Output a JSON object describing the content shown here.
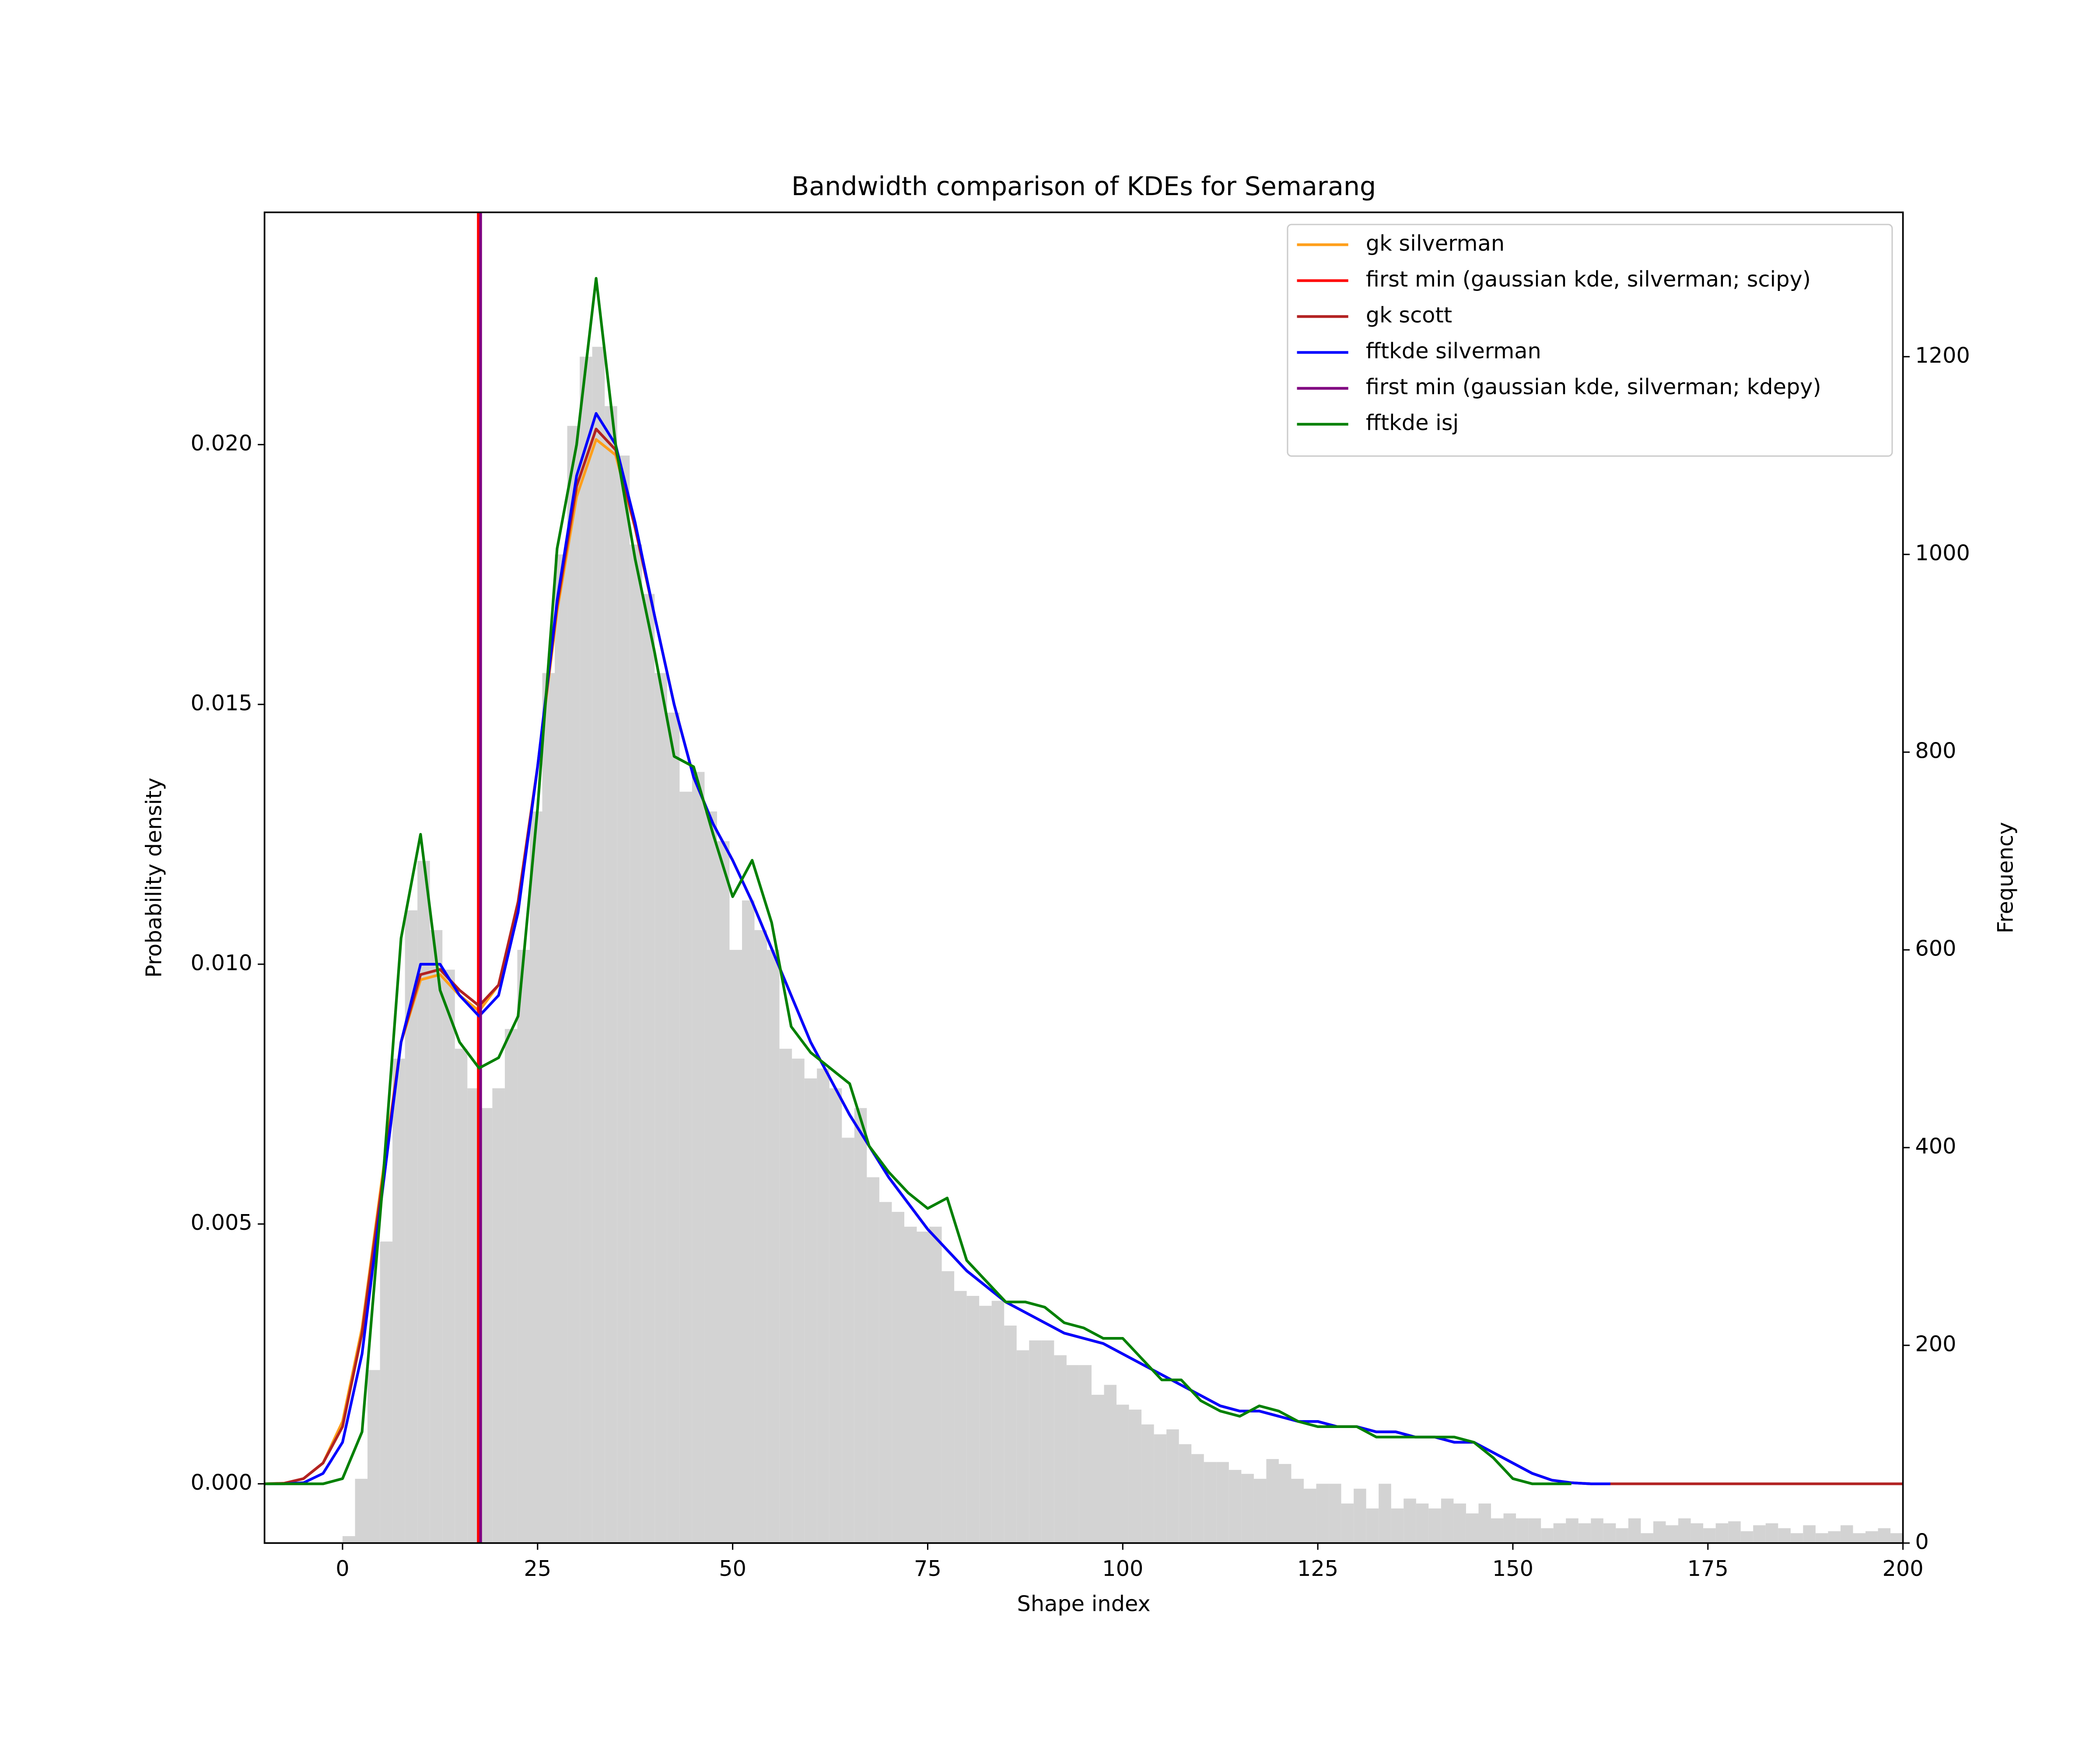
{
  "chart_data": {
    "type": "line",
    "title": "Bandwidth comparison of KDEs for Semarang",
    "xlabel": "Shape index",
    "ylabel": "Probability density",
    "y2label": "Frequency",
    "xlim": [
      -10,
      200
    ],
    "ylim": [
      -0.00114,
      0.02447
    ],
    "y2lim": [
      0,
      1346
    ],
    "xticks": [
      0,
      25,
      50,
      75,
      100,
      125,
      150,
      175,
      200
    ],
    "yticks": [
      {
        "value": 0,
        "label": "0.000"
      },
      {
        "value": 0.005,
        "label": "0.005"
      },
      {
        "value": 0.01,
        "label": "0.010"
      },
      {
        "value": 0.015,
        "label": "0.015"
      },
      {
        "value": 0.02,
        "label": "0.020"
      }
    ],
    "y2ticks": [
      0,
      200,
      400,
      600,
      800,
      1000,
      1200
    ],
    "legend": "upper right",
    "histogram": {
      "axis": "y2",
      "color": "#d3d3d3",
      "bins": [
        0,
        1.6,
        3.2,
        4.8,
        6.4,
        8,
        9.6,
        11.2,
        12.8,
        14.4,
        16,
        17.6,
        19.2,
        20.8,
        22.4,
        24,
        25.6,
        27.2,
        28.8,
        30.4,
        32,
        33.6,
        35.2,
        36.8,
        38.4,
        40,
        41.6,
        43.2,
        44.8,
        46.4,
        48,
        49.6,
        51.2,
        52.8,
        54.4,
        56,
        57.6,
        59.2,
        60.8,
        62.4,
        64,
        65.6,
        67.2,
        68.8,
        70.4,
        72,
        73.6,
        75.2,
        76.8,
        78.4,
        80,
        81.6,
        83.2,
        84.8,
        86.4,
        88,
        89.6,
        91.2,
        92.8,
        94.4,
        96,
        97.6,
        99.2,
        100.8,
        102.4,
        104,
        105.6,
        107.2,
        108.8,
        110.4,
        112,
        113.6,
        115.2,
        116.8,
        118.4,
        120,
        121.6,
        123.2,
        124.8,
        126.4,
        128,
        129.6,
        131.2,
        132.8,
        134.4,
        136,
        137.6,
        139.2,
        140.8,
        142.4,
        144,
        145.6,
        147.2,
        148.8,
        150.4,
        152,
        153.6,
        155.2,
        156.8,
        158.4,
        160,
        161.6,
        163.2,
        164.8,
        166.4,
        168,
        169.6,
        171.2,
        172.8,
        174.4,
        176,
        177.6,
        179.2,
        180.8,
        182.4,
        184,
        185.6,
        187.2,
        188.8,
        190.4,
        192,
        193.6,
        195.2,
        196.8,
        198.4,
        200
      ],
      "values": [
        7,
        65,
        175,
        305,
        490,
        640,
        690,
        620,
        580,
        500,
        460,
        440,
        460,
        520,
        600,
        740,
        880,
        1000,
        1130,
        1200,
        1210,
        1150,
        1100,
        1010,
        960,
        880,
        840,
        760,
        780,
        740,
        710,
        600,
        650,
        620,
        600,
        500,
        490,
        470,
        480,
        460,
        410,
        440,
        370,
        345,
        335,
        320,
        315,
        320,
        275,
        255,
        250,
        240,
        245,
        220,
        195,
        205,
        205,
        190,
        180,
        180,
        150,
        160,
        140,
        135,
        120,
        110,
        115,
        100,
        90,
        82,
        82,
        74,
        70,
        65,
        85,
        80,
        65,
        55,
        60,
        60,
        40,
        55,
        35,
        60,
        35,
        45,
        40,
        35,
        45,
        40,
        30,
        40,
        25,
        30,
        25,
        25,
        15,
        20,
        25,
        20,
        25,
        20,
        15,
        25,
        10,
        22,
        18,
        25,
        20,
        15,
        20,
        22,
        12,
        18,
        20,
        15,
        10,
        18,
        10,
        12,
        18,
        10,
        12,
        15,
        10
      ]
    },
    "x": [
      -10,
      -7.5,
      -5,
      -2.5,
      0,
      2.5,
      5,
      7.5,
      10,
      12.5,
      15,
      17.5,
      20,
      22.5,
      25,
      27.5,
      30,
      32.5,
      35,
      37.5,
      40,
      42.5,
      45,
      47.5,
      50,
      52.5,
      55,
      57.5,
      60,
      62.5,
      65,
      67.5,
      70,
      72.5,
      75,
      77.5,
      80,
      82.5,
      85,
      87.5,
      90,
      92.5,
      95,
      97.5,
      100,
      102.5,
      105,
      107.5,
      110,
      112.5,
      115,
      117.5,
      120,
      122.5,
      125,
      127.5,
      130,
      132.5,
      135,
      137.5,
      140,
      142.5,
      145,
      147.5,
      150,
      152.5,
      155,
      157.5,
      160,
      162.5,
      165,
      167.5,
      170,
      172.5,
      175,
      177.5,
      180,
      182.5,
      185,
      187.5,
      190,
      192.5,
      195,
      197.5,
      200
    ],
    "series": [
      {
        "name": "gk silverman",
        "color": "#ff9f1a",
        "values": [
          0,
          1e-05,
          0.0001,
          0.0004,
          0.0012,
          0.003,
          0.0058,
          0.0085,
          0.0097,
          0.0098,
          0.0094,
          0.0091,
          0.0096,
          0.0112,
          0.0138,
          0.0168,
          0.019,
          0.0201,
          0.0198,
          0.0184,
          0.0167,
          0.015,
          0.0136,
          0.0127,
          0.012,
          0.0112,
          0.0103,
          0.0094,
          0.0085,
          0.0078,
          0.0071,
          0.0065,
          0.0059,
          0.0054,
          0.0049,
          0.0045,
          0.0041,
          0.0038,
          0.0035,
          0.0033,
          0.0031,
          0.0029,
          0.0028,
          0.0027,
          0.0025,
          0.0023,
          0.0021,
          0.0019,
          0.0017,
          0.0015,
          0.0014,
          0.0014,
          0.0013,
          0.0012,
          0.0012,
          0.0011,
          0.0011,
          0.001,
          0.001,
          0.0009,
          0.0009,
          0.0008,
          0.0008,
          0.0006,
          0.0004,
          0.0002,
          7e-05,
          2e-05,
          0,
          0,
          null,
          null,
          null,
          null,
          null,
          null,
          null,
          null,
          null,
          null,
          null,
          null,
          null,
          null,
          null
        ]
      },
      {
        "name": "first min (gaussian kde, silverman; scipy)",
        "color": "#ff0000",
        "x": 17.4
      },
      {
        "name": "gk scott",
        "color": "#b22222",
        "values": [
          0,
          1e-05,
          0.0001,
          0.0004,
          0.0011,
          0.0029,
          0.0057,
          0.0085,
          0.0098,
          0.0099,
          0.0095,
          0.0092,
          0.0096,
          0.0112,
          0.0138,
          0.0169,
          0.0192,
          0.0203,
          0.0199,
          0.0184,
          0.0167,
          0.015,
          0.0136,
          0.0127,
          0.012,
          0.0112,
          0.0103,
          0.0094,
          0.0085,
          0.0078,
          0.0071,
          0.0065,
          0.0059,
          0.0054,
          0.0049,
          0.0045,
          0.0041,
          0.0038,
          0.0035,
          0.0033,
          0.0031,
          0.0029,
          0.0028,
          0.0027,
          0.0025,
          0.0023,
          0.0021,
          0.0019,
          0.0017,
          0.0015,
          0.0014,
          0.0014,
          0.0013,
          0.0012,
          0.0012,
          0.0011,
          0.0011,
          0.001,
          0.001,
          0.0009,
          0.0009,
          0.0008,
          0.0008,
          0.0006,
          0.0004,
          0.0002,
          7e-05,
          2e-05,
          0,
          0,
          0,
          0,
          0,
          0,
          0,
          0,
          0,
          0,
          0,
          0,
          0,
          0,
          0,
          0,
          0
        ]
      },
      {
        "name": "fftkde silverman",
        "color": "#0000ff",
        "values": [
          0,
          0,
          2e-05,
          0.0002,
          0.0008,
          0.0025,
          0.0055,
          0.0085,
          0.01,
          0.01,
          0.0094,
          0.009,
          0.0094,
          0.011,
          0.0138,
          0.017,
          0.0194,
          0.0206,
          0.02,
          0.0185,
          0.0167,
          0.015,
          0.0136,
          0.0127,
          0.012,
          0.0112,
          0.0103,
          0.0094,
          0.0085,
          0.0078,
          0.0071,
          0.0065,
          0.0059,
          0.0054,
          0.0049,
          0.0045,
          0.0041,
          0.0038,
          0.0035,
          0.0033,
          0.0031,
          0.0029,
          0.0028,
          0.0027,
          0.0025,
          0.0023,
          0.0021,
          0.0019,
          0.0017,
          0.0015,
          0.0014,
          0.0014,
          0.0013,
          0.0012,
          0.0012,
          0.0011,
          0.0011,
          0.001,
          0.001,
          0.0009,
          0.0009,
          0.0008,
          0.0008,
          0.0006,
          0.0004,
          0.0002,
          7e-05,
          2e-05,
          0,
          0,
          null,
          null,
          null,
          null,
          null,
          null,
          null,
          null,
          null,
          null,
          null,
          null,
          null,
          null,
          null
        ]
      },
      {
        "name": "first min (gaussian kde, silverman; kdepy)",
        "color": "#800080",
        "x": 17.7
      },
      {
        "name": "fftkde isj",
        "color": "#008000",
        "values": [
          0,
          0,
          0,
          0,
          0.0001,
          0.001,
          0.0055,
          0.0105,
          0.0125,
          0.0095,
          0.0085,
          0.008,
          0.0082,
          0.009,
          0.013,
          0.018,
          0.02,
          0.0232,
          0.02,
          0.0178,
          0.016,
          0.014,
          0.0138,
          0.0125,
          0.0113,
          0.012,
          0.0108,
          0.0088,
          0.0083,
          0.008,
          0.0077,
          0.0065,
          0.006,
          0.0056,
          0.0053,
          0.0055,
          0.0043,
          0.0039,
          0.0035,
          0.0035,
          0.0034,
          0.0031,
          0.003,
          0.0028,
          0.0028,
          0.0024,
          0.002,
          0.002,
          0.0016,
          0.0014,
          0.0013,
          0.0015,
          0.0014,
          0.0012,
          0.0011,
          0.0011,
          0.0011,
          0.0009,
          0.0009,
          0.0009,
          0.0009,
          0.0009,
          0.0008,
          0.0005,
          0.0001,
          0,
          0,
          0,
          null,
          null,
          null,
          null,
          null,
          null,
          null,
          null,
          null,
          null,
          null,
          null,
          null,
          null,
          null,
          null,
          null
        ]
      }
    ]
  }
}
